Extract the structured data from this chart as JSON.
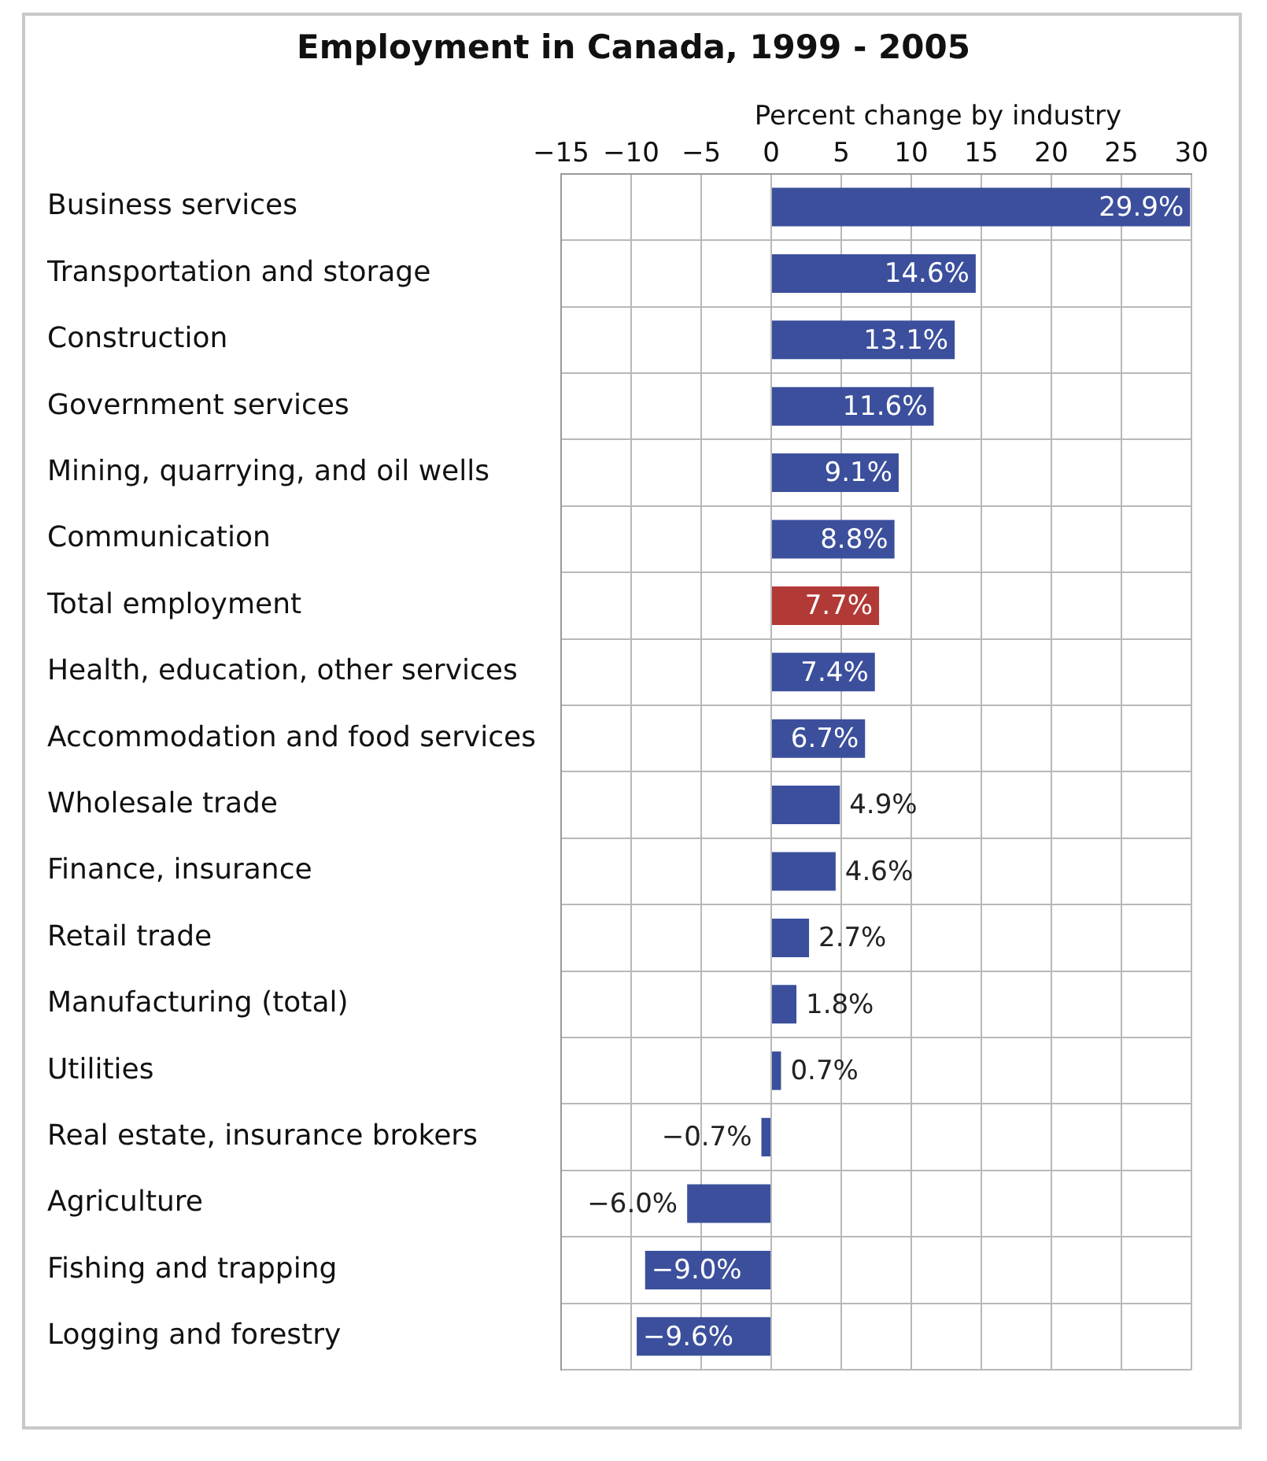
{
  "chart_data": {
    "type": "bar",
    "orientation": "horizontal",
    "title": "Employment in Canada, 1999 - 2005",
    "xlabel": "Percent change by industry",
    "categories": [
      "Business services",
      "Transportation and storage",
      "Construction",
      "Government services",
      "Mining, quarrying, and oil wells",
      "Communication",
      "Total employment",
      "Health, education, other services",
      "Accommodation and food services",
      "Wholesale trade",
      "Finance, insurance",
      "Retail trade",
      "Manufacturing (total)",
      "Utilities",
      "Real estate, insurance brokers",
      "Agriculture",
      "Fishing and trapping",
      "Logging and forestry"
    ],
    "values": [
      29.9,
      14.6,
      13.1,
      11.6,
      9.1,
      8.8,
      7.7,
      7.4,
      6.7,
      4.9,
      4.6,
      2.7,
      1.8,
      0.7,
      -0.7,
      -6.0,
      -9.0,
      -9.6
    ],
    "value_labels": [
      "29.9%",
      "14.6%",
      "13.1%",
      "11.6%",
      "9.1%",
      "8.8%",
      "7.7%",
      "7.4%",
      "6.7%",
      "4.9%",
      "4.6%",
      "2.7%",
      "1.8%",
      "0.7%",
      "−0.7%",
      "−6.0%",
      "−9.0%",
      "−9.6%"
    ],
    "colors": [
      "#3b4f9c",
      "#3b4f9c",
      "#3b4f9c",
      "#3b4f9c",
      "#3b4f9c",
      "#3b4f9c",
      "#b23a36",
      "#3b4f9c",
      "#3b4f9c",
      "#3b4f9c",
      "#3b4f9c",
      "#3b4f9c",
      "#3b4f9c",
      "#3b4f9c",
      "#3b4f9c",
      "#3b4f9c",
      "#3b4f9c",
      "#3b4f9c"
    ],
    "xlim": [
      -15,
      30
    ],
    "xticks": [
      {
        "value": -15,
        "label": "−15"
      },
      {
        "value": -10,
        "label": "−10"
      },
      {
        "value": -5,
        "label": "−5"
      },
      0,
      5,
      10,
      15,
      20,
      25,
      30
    ],
    "grid": true
  }
}
